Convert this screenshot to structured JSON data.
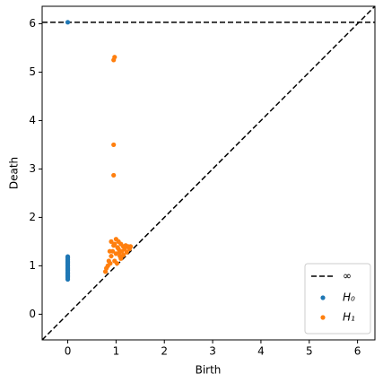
{
  "chart_data": {
    "type": "scatter",
    "x_label": "Birth",
    "y_label": "Death",
    "xlim": [
      -0.53,
      6.36
    ],
    "ylim": [
      -0.53,
      6.36
    ],
    "xticks": [
      0,
      1,
      2,
      3,
      4,
      5,
      6
    ],
    "yticks": [
      0,
      1,
      2,
      3,
      4,
      5,
      6
    ],
    "infinity_line": {
      "name": "∞",
      "y": 6.03
    },
    "legend": "lower right",
    "series": [
      {
        "name": "H₀",
        "color": "#1f77b4",
        "x": [
          0,
          0,
          0,
          0,
          0,
          0,
          0,
          0,
          0,
          0,
          0,
          0,
          0,
          0,
          0,
          0,
          0,
          0,
          0,
          0
        ],
        "values": [
          0.72,
          0.75,
          0.78,
          0.8,
          0.83,
          0.85,
          0.87,
          0.9,
          0.92,
          0.95,
          0.97,
          1.0,
          1.02,
          1.05,
          1.08,
          1.1,
          1.13,
          1.16,
          1.19,
          6.03
        ]
      },
      {
        "name": "H₁",
        "color": "#ff7f0e",
        "x": [
          0.95,
          0.97,
          0.95,
          0.95,
          0.78,
          0.8,
          0.83,
          0.85,
          0.88,
          0.9,
          0.9,
          0.93,
          0.95,
          0.97,
          1.0,
          1.0,
          1.02,
          1.05,
          1.05,
          1.08,
          1.1,
          1.1,
          1.12,
          1.15,
          1.15,
          1.18,
          1.2,
          1.22,
          1.25,
          1.28,
          1.3,
          0.97,
          1.03,
          0.87,
          1.07
        ],
        "values": [
          5.25,
          5.31,
          3.5,
          2.87,
          0.88,
          0.95,
          1.0,
          1.1,
          1.05,
          1.2,
          1.5,
          1.3,
          1.42,
          1.1,
          1.55,
          1.25,
          1.05,
          1.35,
          1.5,
          1.2,
          1.45,
          1.15,
          1.3,
          1.4,
          1.22,
          1.35,
          1.42,
          1.28,
          1.4,
          1.35,
          1.4,
          1.45,
          1.38,
          1.3,
          1.28
        ]
      }
    ]
  }
}
